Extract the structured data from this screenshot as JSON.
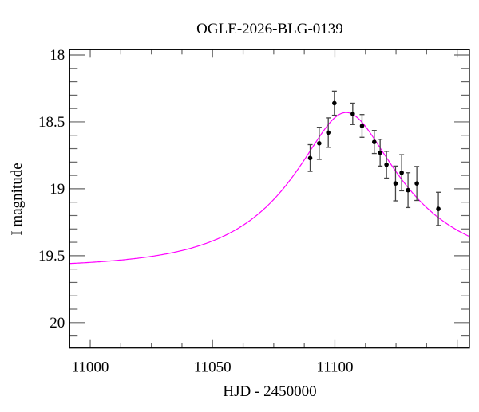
{
  "chart_data": {
    "type": "scatter",
    "title": "OGLE-2026-BLG-0139",
    "xlabel": "HJD - 2450000",
    "ylabel": "I magnitude",
    "xlim": [
      10991.6,
      11155
    ],
    "ylim": [
      20.19,
      17.96
    ],
    "y_inverted": true,
    "x_ticks": [
      11000,
      11050,
      11100
    ],
    "x_tick_labels": [
      "11000",
      "11050",
      "11100"
    ],
    "y_ticks": [
      18,
      18.5,
      19,
      19.5,
      20
    ],
    "y_tick_labels": [
      "18",
      "18.5",
      "19",
      "19.5",
      "20"
    ],
    "grid": false,
    "series": [
      {
        "kind": "points-with-errorbars",
        "color": "#000000",
        "x": [
          11089.9,
          11093.6,
          11097.3,
          11099.8,
          11107.3,
          11111.1,
          11116.1,
          11118.5,
          11121.1,
          11124.8,
          11127.3,
          11129.9,
          11133.5,
          11142.3
        ],
        "y": [
          18.77,
          18.66,
          18.58,
          18.36,
          18.44,
          18.53,
          18.65,
          18.73,
          18.82,
          18.96,
          18.88,
          19.01,
          18.96,
          19.15
        ],
        "yerr": [
          0.1,
          0.12,
          0.11,
          0.09,
          0.08,
          0.085,
          0.086,
          0.1,
          0.1,
          0.13,
          0.135,
          0.13,
          0.127,
          0.124
        ]
      },
      {
        "kind": "model-curve",
        "color": "#ff00ff",
        "model": {
          "t0": 11104.6,
          "u0": 0.36,
          "tE": 45,
          "baseline_mag": 19.59
        }
      }
    ]
  }
}
